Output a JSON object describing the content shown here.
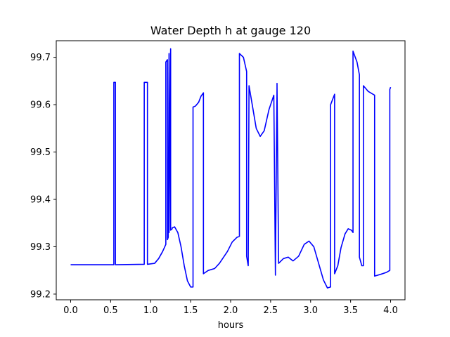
{
  "chart_data": {
    "type": "line",
    "title": "Water Depth h at gauge 120",
    "xlabel": "hours",
    "ylabel": "",
    "xlim": [
      -0.18,
      4.18
    ],
    "ylim": [
      99.188,
      99.735
    ],
    "xticks": [
      0.0,
      0.5,
      1.0,
      1.5,
      2.0,
      2.5,
      3.0,
      3.5,
      4.0
    ],
    "xtick_labels": [
      "0.0",
      "0.5",
      "1.0",
      "1.5",
      "2.0",
      "2.5",
      "3.0",
      "3.5",
      "4.0"
    ],
    "yticks": [
      99.2,
      99.3,
      99.4,
      99.5,
      99.6,
      99.7
    ],
    "ytick_labels": [
      "99.2",
      "99.3",
      "99.4",
      "99.5",
      "99.6",
      "99.7"
    ],
    "grid": false,
    "series": [
      {
        "color": "#0000ff",
        "x": [
          0.0,
          0.54,
          0.54,
          0.56,
          0.56,
          0.92,
          0.92,
          0.96,
          0.96,
          1.05,
          1.1,
          1.15,
          1.19,
          1.19,
          1.21,
          1.21,
          1.22,
          1.23,
          1.23,
          1.25,
          1.25,
          1.27,
          1.27,
          1.3,
          1.34,
          1.38,
          1.42,
          1.46,
          1.5,
          1.53,
          1.53,
          1.56,
          1.6,
          1.63,
          1.66,
          1.66,
          1.72,
          1.8,
          1.86,
          1.9,
          1.96,
          2.02,
          2.08,
          2.11,
          2.11,
          2.16,
          2.2,
          2.2,
          2.2,
          2.22,
          2.23,
          2.23,
          2.27,
          2.32,
          2.37,
          2.42,
          2.48,
          2.54,
          2.56,
          2.56,
          2.58,
          2.58,
          2.6,
          2.6,
          2.66,
          2.72,
          2.78,
          2.85,
          2.92,
          2.98,
          3.04,
          3.1,
          3.16,
          3.21,
          3.25,
          3.25,
          3.3,
          3.3,
          3.34,
          3.38,
          3.43,
          3.47,
          3.51,
          3.53,
          3.53,
          3.58,
          3.61,
          3.61,
          3.64,
          3.66,
          3.66,
          3.72,
          3.8,
          3.8,
          3.88,
          3.95,
          3.99,
          3.99,
          4.0
        ],
        "y": [
          99.262,
          99.262,
          99.647,
          99.647,
          99.262,
          99.263,
          99.647,
          99.647,
          99.263,
          99.265,
          99.275,
          99.29,
          99.305,
          99.69,
          99.695,
          99.315,
          99.32,
          99.708,
          99.33,
          99.718,
          99.335,
          99.338,
          99.34,
          99.342,
          99.33,
          99.3,
          99.26,
          99.228,
          99.215,
          99.215,
          99.595,
          99.597,
          99.605,
          99.618,
          99.625,
          99.243,
          99.25,
          99.254,
          99.265,
          99.275,
          99.29,
          99.31,
          99.32,
          99.322,
          99.708,
          99.7,
          99.67,
          99.67,
          99.28,
          99.26,
          99.64,
          99.64,
          99.6,
          99.55,
          99.533,
          99.545,
          99.59,
          99.62,
          99.24,
          99.25,
          99.635,
          99.645,
          99.265,
          99.265,
          99.275,
          99.278,
          99.27,
          99.28,
          99.305,
          99.312,
          99.3,
          99.265,
          99.23,
          99.213,
          99.215,
          99.6,
          99.622,
          99.243,
          99.26,
          99.298,
          99.327,
          99.338,
          99.335,
          99.33,
          99.713,
          99.69,
          99.663,
          99.278,
          99.26,
          99.26,
          99.64,
          99.628,
          99.62,
          99.238,
          99.242,
          99.246,
          99.25,
          99.632,
          99.637
        ]
      }
    ]
  }
}
